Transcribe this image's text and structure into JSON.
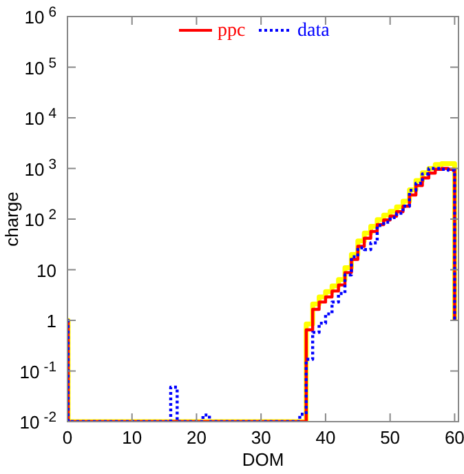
{
  "chart_data": {
    "type": "step",
    "xlabel": "DOM",
    "ylabel": "charge",
    "log": "y",
    "legend": "top",
    "xlim": [
      0,
      60.6
    ],
    "xticks": [
      0,
      10,
      20,
      30,
      40,
      50,
      60
    ],
    "ylim": [
      0.01,
      1000000
    ],
    "yticks": [
      {
        "value": 0.01,
        "label": "10$^{-2}$"
      },
      {
        "value": 0.1,
        "label": "10$^{-1}$"
      },
      1,
      10,
      {
        "value": 100,
        "label": "10$^{2}$"
      },
      {
        "value": 1000,
        "label": "10$^{3}$"
      },
      {
        "value": 10000,
        "label": "10$^{4}$"
      },
      {
        "value": 100000,
        "label": "10$^{5}$"
      },
      {
        "value": 1000000,
        "label": "10$^{6}$"
      }
    ],
    "series": [
      {
        "color": "#ffff00",
        "line_style": "solid",
        "x": [
          0,
          0.1,
          37,
          38,
          39,
          40,
          41,
          42,
          43,
          44,
          45,
          46,
          47,
          48,
          49,
          50,
          51,
          52,
          53,
          54,
          55,
          56,
          57,
          58,
          59,
          60
        ],
        "values": [
          1,
          0.01,
          0.85,
          2.1,
          2.9,
          3.7,
          4.8,
          6.4,
          11,
          20,
          37,
          53,
          72,
          98,
          120,
          142,
          175,
          225,
          380,
          580,
          820,
          1000,
          1200,
          1250,
          1250,
          1
        ]
      },
      {
        "name": "ppc",
        "color": "#ff0000",
        "line_style": "solid",
        "x": [
          0,
          0.1,
          37,
          38,
          39,
          40,
          41,
          42,
          43,
          44,
          45,
          46,
          47,
          48,
          49,
          50,
          51,
          52,
          53,
          54,
          55,
          56,
          57,
          58,
          59,
          60
        ],
        "values": [
          1,
          0.01,
          0.65,
          1.65,
          2.3,
          2.9,
          3.8,
          5,
          8.8,
          16,
          29,
          42,
          57,
          78,
          96,
          114,
          140,
          180,
          300,
          460,
          650,
          810,
          960,
          1000,
          960,
          1
        ]
      },
      {
        "name": "data",
        "color": "#0000ff",
        "line_style": "dotted",
        "x": [
          0,
          0.1,
          16,
          17,
          21,
          22,
          36,
          37,
          38,
          39,
          40,
          41,
          42,
          43,
          44,
          45,
          46,
          47,
          48,
          49,
          50,
          51,
          52,
          53,
          54,
          55,
          56,
          57,
          58,
          59,
          60
        ],
        "values": [
          1,
          0.01,
          0.048,
          0.01,
          0.0135,
          0.01,
          0.014,
          0.17,
          0.58,
          0.88,
          1.34,
          2.3,
          3.4,
          7.9,
          18,
          27,
          25,
          34,
          75,
          87,
          107,
          130,
          180,
          370,
          510,
          780,
          1000,
          1000,
          960,
          920,
          1
        ]
      }
    ]
  }
}
